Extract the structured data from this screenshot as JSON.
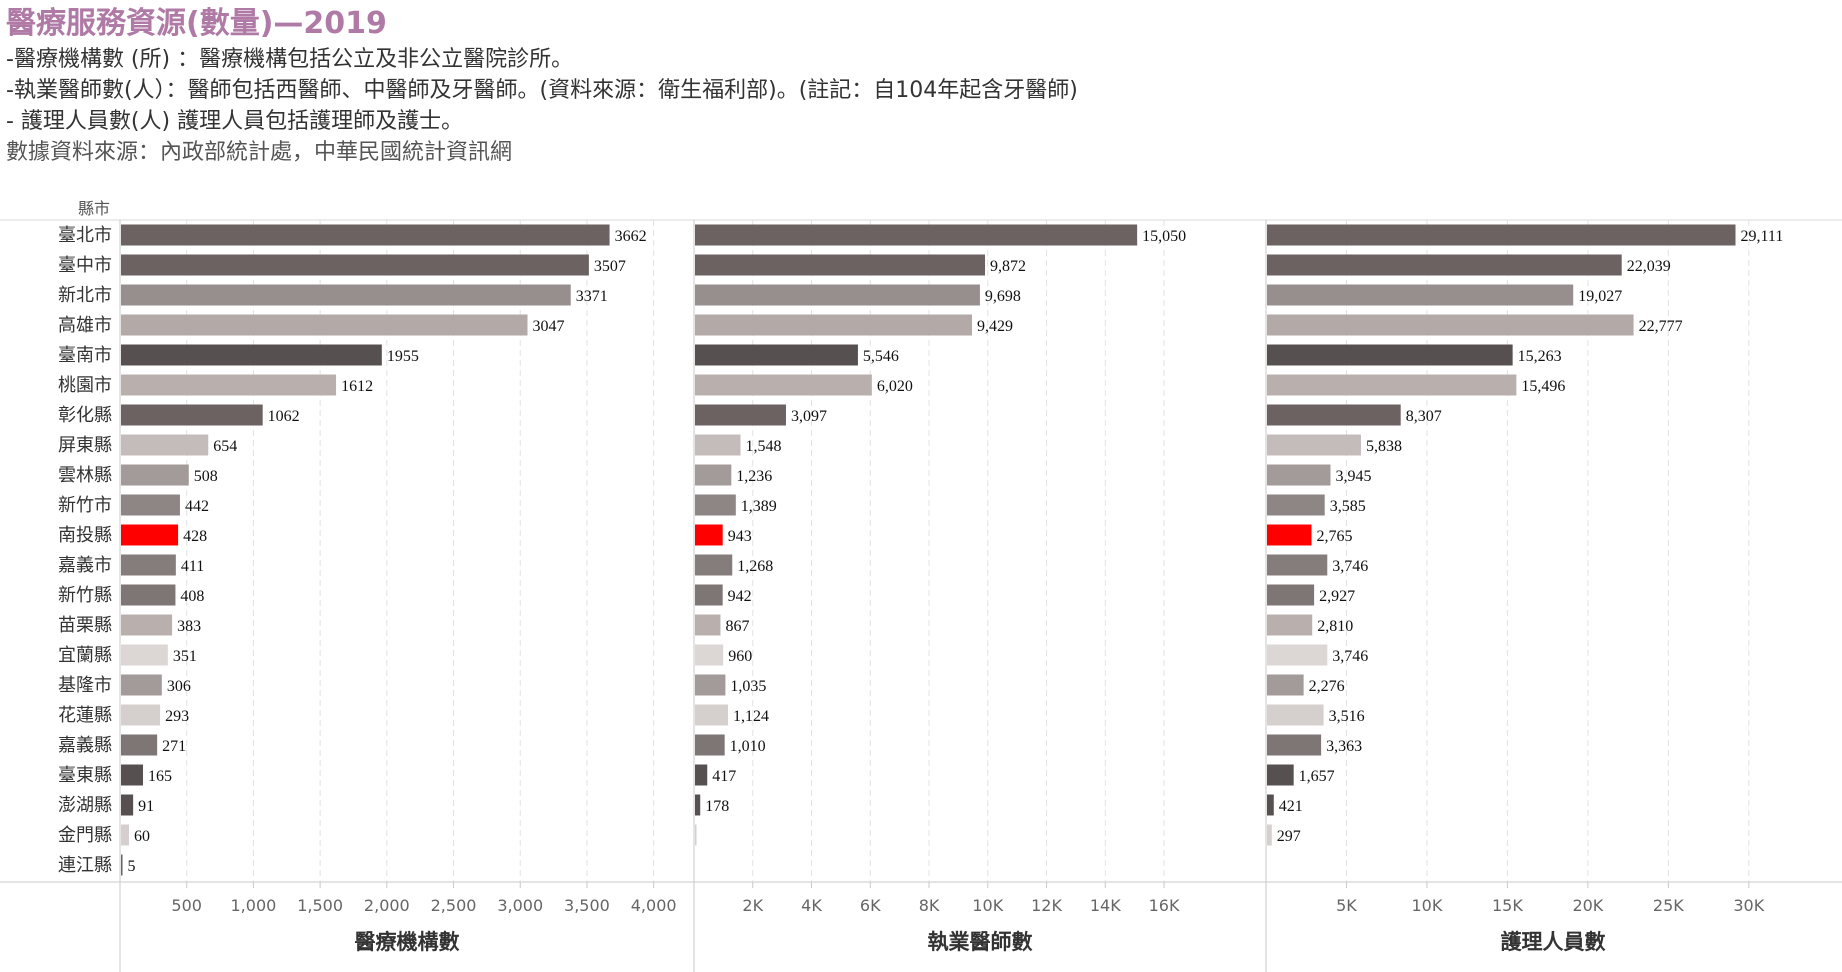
{
  "header": {
    "title": "醫療服務資源(數量)—2019",
    "lines": [
      "-醫療機構數 (所) ：醫療機構包括公立及非公立醫院診所。",
      "-執業醫師數(人）：醫師包括西醫師、中醫師及牙醫師。(資料來源：衛生福利部)。(註記：自104年起含牙醫師)",
      "- 護理人員數(人) 護理人員包括護理師及護士。",
      "數據資料來源：內政部統計處，中華民國統計資訊網"
    ]
  },
  "chart_data": {
    "type": "bar",
    "orientation": "horizontal",
    "row_header": "縣市",
    "categories": [
      "臺北市",
      "臺中市",
      "新北市",
      "高雄市",
      "臺南市",
      "桃園市",
      "彰化縣",
      "屏東縣",
      "雲林縣",
      "新竹市",
      "南投縣",
      "嘉義市",
      "新竹縣",
      "苗栗縣",
      "宜蘭縣",
      "基隆市",
      "花蓮縣",
      "嘉義縣",
      "臺東縣",
      "澎湖縣",
      "金門縣",
      "連江縣"
    ],
    "bar_colors": [
      "#6b6261",
      "#6b6261",
      "#978f8d",
      "#b3aaa8",
      "#575050",
      "#b9b0ae",
      "#6b6261",
      "#c4bcba",
      "#a39b99",
      "#8e8684",
      "#ff0000",
      "#857d7b",
      "#7e7674",
      "#b9b0ae",
      "#dcd6d4",
      "#a39b99",
      "#d5cfcd",
      "#7e7674",
      "#575050",
      "#575050",
      "#d5cfcd",
      "#6b6261"
    ],
    "series": [
      {
        "name": "醫療機構數",
        "values": [
          3662,
          3507,
          3371,
          3047,
          1955,
          1612,
          1062,
          654,
          508,
          442,
          428,
          411,
          408,
          383,
          351,
          306,
          293,
          271,
          165,
          91,
          60,
          5
        ],
        "labels": [
          "3662",
          "3507",
          "3371",
          "3047",
          "1955",
          "1612",
          "1062",
          "654",
          "508",
          "442",
          "428",
          "411",
          "408",
          "383",
          "351",
          "306",
          "293",
          "271",
          "165",
          "91",
          "60",
          "5"
        ],
        "xlim": [
          0,
          4100
        ],
        "ticks": [
          500,
          1000,
          1500,
          2000,
          2500,
          3000,
          3500,
          4000
        ],
        "tick_labels": [
          "500",
          "1,000",
          "1,500",
          "2,000",
          "2,500",
          "3,000",
          "3,500",
          "4,000"
        ]
      },
      {
        "name": "執業醫師數",
        "values": [
          15050,
          9872,
          9698,
          9429,
          5546,
          6020,
          3097,
          1548,
          1236,
          1389,
          943,
          1268,
          942,
          867,
          960,
          1035,
          1124,
          1010,
          417,
          178,
          30,
          0
        ],
        "labels": [
          "15,050",
          "9,872",
          "9,698",
          "9,429",
          "5,546",
          "6,020",
          "3,097",
          "1,548",
          "1,236",
          "1,389",
          "943",
          "1,268",
          "942",
          "867",
          "960",
          "1,035",
          "1,124",
          "1,010",
          "417",
          "178",
          "",
          ""
        ],
        "xlim": [
          0,
          17700
        ],
        "ticks": [
          2000,
          4000,
          6000,
          8000,
          10000,
          12000,
          14000,
          16000
        ],
        "tick_labels": [
          "2K",
          "4K",
          "6K",
          "8K",
          "10K",
          "12K",
          "14K",
          "16K"
        ]
      },
      {
        "name": "護理人員數",
        "values": [
          29111,
          22039,
          19027,
          22777,
          15263,
          15496,
          8307,
          5838,
          3945,
          3585,
          2765,
          3746,
          2927,
          2810,
          3746,
          2276,
          3516,
          3363,
          1657,
          421,
          297,
          0
        ],
        "labels": [
          "29,111",
          "22,039",
          "19,027",
          "22,777",
          "15,263",
          "15,496",
          "8,307",
          "5,838",
          "3,945",
          "3,585",
          "2,765",
          "3,746",
          "2,927",
          "2,810",
          "3,746",
          "2,276",
          "3,516",
          "3,363",
          "1,657",
          "421",
          "297",
          ""
        ],
        "xlim": [
          0,
          32000
        ],
        "ticks": [
          5000,
          10000,
          15000,
          20000,
          25000,
          30000
        ],
        "tick_labels": [
          "5K",
          "10K",
          "15K",
          "20K",
          "25K",
          "30K"
        ]
      }
    ],
    "grid": true
  }
}
